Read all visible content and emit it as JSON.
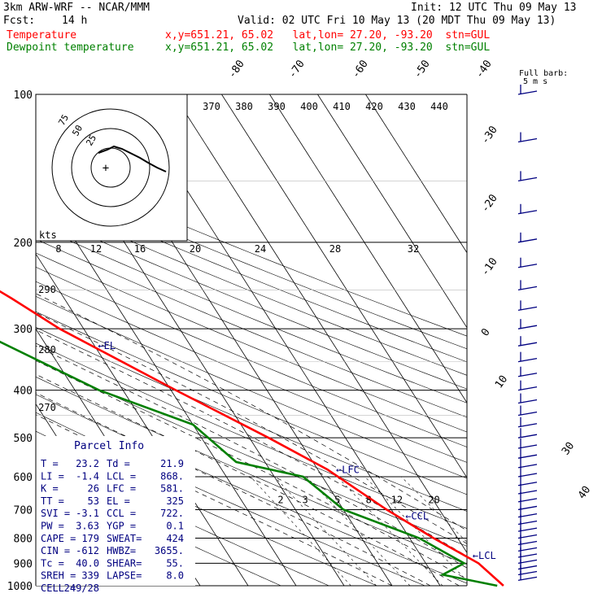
{
  "header": {
    "model": "3km ARW-WRF -- NCAR/MMM",
    "init": "Init: 12 UTC Thu 09 May 13",
    "fcst_label": "Fcst:",
    "fcst_value": "14 h",
    "valid": "Valid: 02 UTC Fri 10 May 13 (20 MDT Thu 09 May 13)",
    "temp_label": "Temperature",
    "dew_label": "Dewpoint temperature",
    "temp_loc": "x,y=651.21, 65.02   lat,lon= 27.20, -93.20  stn=GUL",
    "dew_loc": "x,y=651.21, 65.02   lat,lon= 27.20, -93.20  stn=GUL"
  },
  "colors": {
    "temperature": "#ff0000",
    "dewpoint": "#008000",
    "annot": "#000080"
  },
  "barb_legend": {
    "title": "Full barb:",
    "value": "5 m s"
  },
  "hodo_labels": [
    "75",
    "50",
    "25"
  ],
  "kts_label": "kts",
  "parcel": {
    "title": "Parcel Info",
    "rows": [
      [
        "T  =",
        "23.2",
        "Td =",
        "21.9"
      ],
      [
        "LI =",
        "-1.4",
        "LCL =",
        "868."
      ],
      [
        "K  =",
        "26",
        "LFC =",
        "581."
      ],
      [
        "TT =",
        "53",
        "EL =",
        "325"
      ],
      [
        "SVI =",
        "-3.1",
        "CCL =",
        "722."
      ],
      [
        "PW =",
        "3.63",
        "YGP =",
        "0.1"
      ],
      [
        "CAPE =",
        "179",
        "SWEAT=",
        "424"
      ],
      [
        "CIN =",
        "-612",
        "HWBZ=",
        "3655."
      ],
      [
        "Tc =",
        "40.0",
        "SHEAR=",
        "55."
      ],
      [
        "SREH =",
        "339",
        "LAPSE=",
        "8.0"
      ],
      [
        "CELL =",
        "249/28",
        "",
        ""
      ]
    ]
  },
  "chart_data": {
    "type": "line",
    "title": "Skew-T log-P sounding",
    "ylabel": "Pressure (hPa)",
    "pressure_ticks": [
      100,
      200,
      300,
      400,
      500,
      600,
      700,
      800,
      900,
      1000
    ],
    "isotherm_labels": [
      -80,
      -70,
      -60,
      -50,
      -40,
      -30,
      -20,
      -10,
      0,
      10,
      20,
      30,
      40
    ],
    "theta_labels": [
      370,
      380,
      390,
      400,
      410,
      420,
      430,
      440
    ],
    "theta_low_labels": [
      290,
      280,
      270
    ],
    "mixing_ratio_labels": [
      2,
      3,
      5,
      8,
      12,
      20
    ],
    "hodo_speed_labels": [
      8,
      12,
      16,
      20,
      24,
      28,
      32
    ],
    "annotations": [
      {
        "text": "EL",
        "p": 325
      },
      {
        "text": "LFC",
        "p": 581
      },
      {
        "text": "CCL",
        "p": 722
      },
      {
        "text": "LCL",
        "p": 868
      }
    ],
    "series": [
      {
        "name": "Temperature",
        "color": "#ff0000",
        "p": [
          100,
          125,
          170,
          200,
          260,
          300,
          400,
          500,
          580,
          700,
          800,
          900,
          1000
        ],
        "t": [
          -72,
          -67,
          -59,
          -53,
          -41,
          -35,
          -19,
          -6,
          2,
          9,
          15,
          21,
          23.2
        ]
      },
      {
        "name": "Dewpoint temperature",
        "color": "#008000",
        "p": [
          100,
          125,
          170,
          200,
          225,
          260,
          300,
          400,
          470,
          560,
          600,
          700,
          800,
          900,
          950,
          1000
        ],
        "t": [
          -90,
          -87,
          -82,
          -77,
          -74,
          -70,
          -53,
          -35,
          -20,
          -16,
          -4,
          0,
          12,
          18,
          12,
          21.9
        ]
      }
    ]
  }
}
